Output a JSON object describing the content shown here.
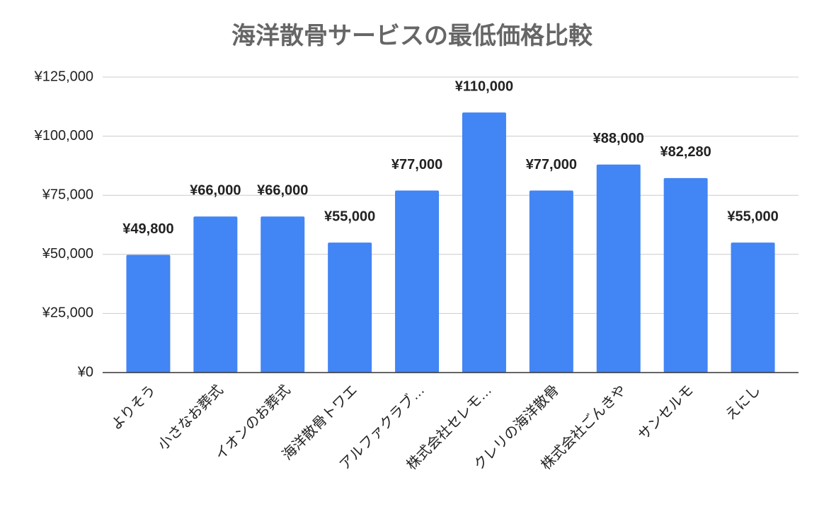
{
  "chart_data": {
    "type": "bar",
    "title": "海洋散骨サービスの最低価格比較",
    "categories": [
      "よりそう",
      "小さなお葬式",
      "イオンのお葬式",
      "海洋散骨トワエ",
      "アルファクラブ…",
      "株式会社セレモ…",
      "クレリの海洋散骨",
      "株式会社ごんきや",
      "サンセルモ",
      "えにし"
    ],
    "values": [
      49800,
      66000,
      66000,
      55000,
      77000,
      110000,
      77000,
      88000,
      82280,
      55000
    ],
    "value_labels": [
      "¥49,800",
      "¥66,000",
      "¥66,000",
      "¥55,000",
      "¥77,000",
      "¥110,000",
      "¥77,000",
      "¥88,000",
      "¥82,280",
      "¥55,000"
    ],
    "color": "#4285f4",
    "ylim": [
      0,
      125000
    ],
    "yticks": [
      {
        "value": 0,
        "label": "¥0"
      },
      {
        "value": 25000,
        "label": "¥25,000"
      },
      {
        "value": 50000,
        "label": "¥50,000"
      },
      {
        "value": 75000,
        "label": "¥75,000"
      },
      {
        "value": 100000,
        "label": "¥100,000"
      },
      {
        "value": 125000,
        "label": "¥125,000"
      }
    ],
    "grid": true
  }
}
